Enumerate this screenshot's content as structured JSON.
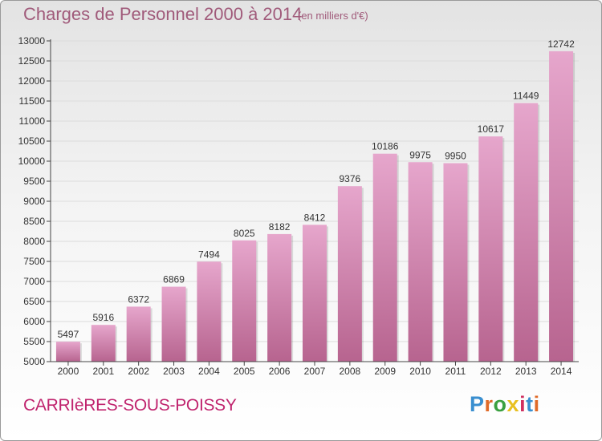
{
  "title": "Charges de Personnel 2000 à 2014",
  "subtitle": "(en milliers d'€)",
  "city": "CARRIèRES-SOUS-POISSY",
  "logo": {
    "text": "Proxiti",
    "letter_colors": [
      "#3a8fd0",
      "#e06a28",
      "#3aa040",
      "#e8c020",
      "#d03060",
      "#3a8fd0",
      "#e06a28"
    ]
  },
  "colors": {
    "bar_top": "#e6a6cc",
    "bar_bottom": "#b7648f",
    "axis": "#444444",
    "grid": "#dcdcdc",
    "title": "#a05a7a",
    "city": "#c0246e"
  },
  "chart_data": {
    "type": "bar",
    "categories": [
      "2000",
      "2001",
      "2002",
      "2003",
      "2004",
      "2005",
      "2006",
      "2007",
      "2008",
      "2009",
      "2010",
      "2011",
      "2012",
      "2013",
      "2014"
    ],
    "values": [
      5497,
      5916,
      6372,
      6869,
      7494,
      8025,
      8182,
      8412,
      9376,
      10186,
      9975,
      9950,
      10617,
      11449,
      12742
    ],
    "value_labels": [
      "5497",
      "5916",
      "6372",
      "6869",
      "7494",
      "8025",
      "8182",
      "8412",
      "9376",
      "10186",
      "9975",
      "9950",
      "10617",
      "11449",
      "12742"
    ],
    "title": "Charges de Personnel 2000 à 2014",
    "xlabel": "",
    "ylabel": "",
    "ylim": [
      5000,
      13000
    ],
    "yticks": [
      5000,
      5500,
      6000,
      6500,
      7000,
      7500,
      8000,
      8500,
      9000,
      9500,
      10000,
      10500,
      11000,
      11500,
      12000,
      12500,
      13000
    ],
    "grid": true
  }
}
